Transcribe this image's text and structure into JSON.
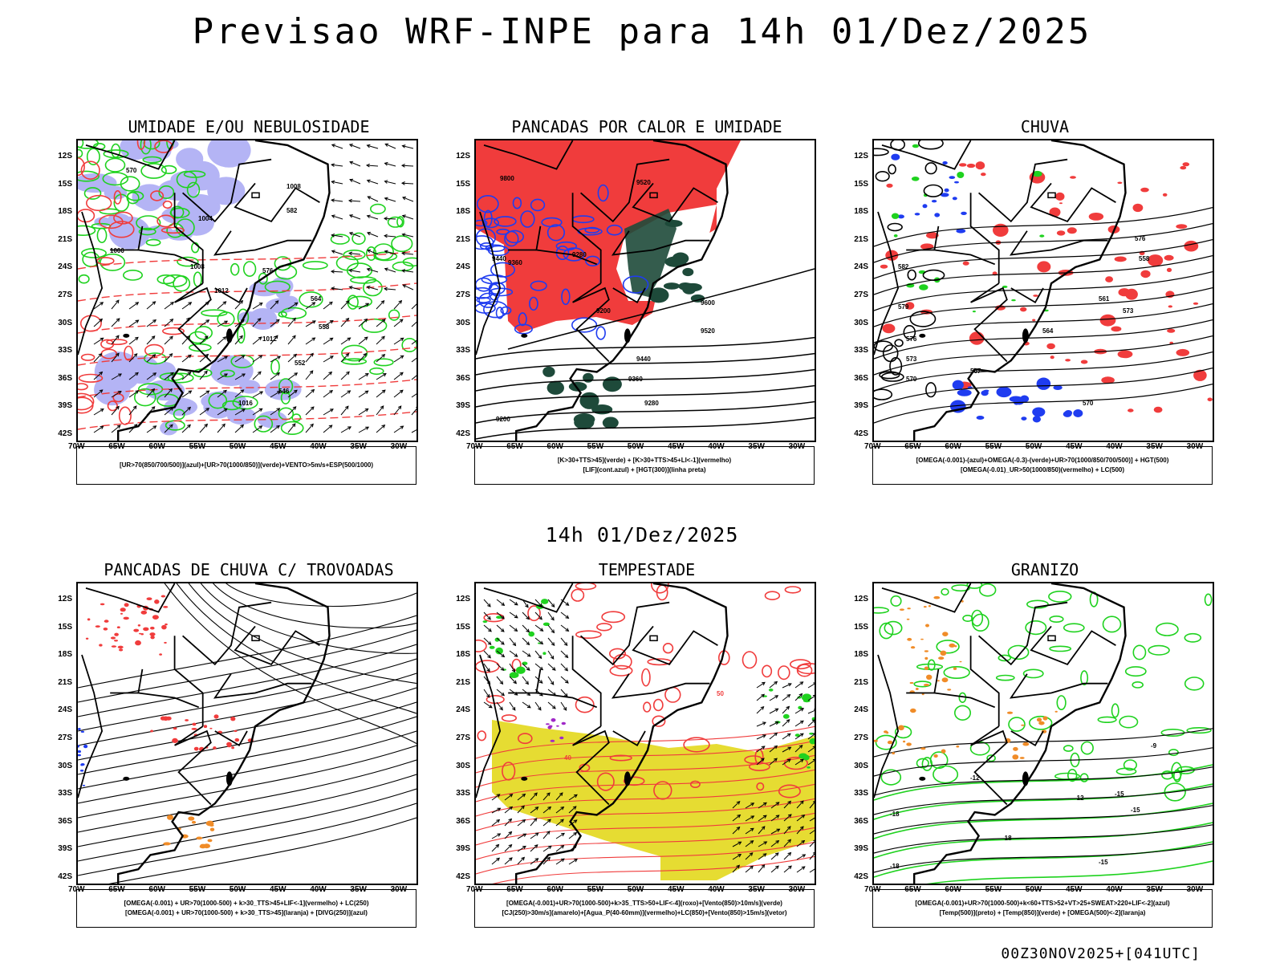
{
  "header": {
    "title": "Previsao WRF-INPE  para 14h 01/Dez/2025",
    "mid_title": "14h 01/Dez/2025",
    "footer": "00Z30NOV2025+[041UTC]"
  },
  "axes": {
    "lat_labels": [
      "12S",
      "15S",
      "18S",
      "21S",
      "24S",
      "27S",
      "30S",
      "33S",
      "36S",
      "39S",
      "42S"
    ],
    "lon_labels": [
      "70W",
      "65W",
      "60W",
      "55W",
      "50W",
      "45W",
      "40W",
      "35W",
      "30W"
    ]
  },
  "colors": {
    "red": "#f03c3c",
    "green": "#1fd21f",
    "blue": "#1f3cf0",
    "lavender": "#b4b4f5",
    "dark_green": "#1e4a3a",
    "yellow": "#e6dc32",
    "orange": "#f08c28",
    "purple": "#a028c8"
  },
  "panels": [
    {
      "id": "umidade",
      "title": "UMIDADE E/OU NEBULOSIDADE",
      "legend": [
        "[UR>70(850/700/500)](azul)+[UR>70(1000/850)](verde)+VENTO>5m/s+ESP(500/1000)"
      ],
      "contour_labels": [
        "1008",
        "1012",
        "1004",
        "1000",
        "1016",
        "570",
        "576",
        "582",
        "564",
        "558",
        "552",
        "546",
        "1008",
        "1012"
      ]
    },
    {
      "id": "pancadas-calor",
      "title": "PANCADAS POR CALOR E UMIDADE",
      "legend": [
        "[K>30+TTS>45](verde) + [K>30+TTS>45+LI<-1](vermelho)",
        "[LIF](cont.azul) + [HGT(300)](linha preta)"
      ],
      "contour_labels": [
        "9800",
        "9520",
        "9440",
        "9360",
        "9280",
        "9200",
        "9600",
        "9520",
        "9440",
        "9360",
        "9280",
        "9200"
      ]
    },
    {
      "id": "chuva",
      "title": "CHUVA",
      "legend": [
        "[OMEGA(-0.001)-(azul)+OMEGA(-0.3)-(verde)+UR>70(1000/850/700/500)] + HGT(500)",
        "[OMEGA(-0.01)_UR>50(1000/850)(vermelho) + LC(500)"
      ],
      "contour_labels": [
        "582",
        "579",
        "576",
        "573",
        "570",
        "567",
        "564",
        "561",
        "558",
        "576",
        "573",
        "570"
      ]
    },
    {
      "id": "pancadas-trovoadas",
      "title": "PANCADAS DE CHUVA C/ TROVOADAS",
      "legend": [
        "[OMEGA(-0.001) + UR>70(1000-500) + k>30_TTS>45+LIF<-1](vermelho) + LC(250)",
        "[OMEGA(-0.001) + UR>70(1000-500) + k>30_TTS>45](laranja) + [DIVG(250)](azul)"
      ],
      "contour_labels": []
    },
    {
      "id": "tempestade",
      "title": "TEMPESTADE",
      "legend": [
        "[OMEGA(-0.001)+UR>70(1000-500)+k>35_TTS>50+LIF<-4](roxo)+[Vento(850)>10m/s](verde)",
        "[CJ(250)>30m/s](amarelo)+[Agua_P(40-60mm)](vermelho)+LC(850)+[Vento(850)>15m/s](vetor)"
      ],
      "contour_labels": [
        "40",
        "50"
      ]
    },
    {
      "id": "granizo",
      "title": "GRANIZO",
      "legend": [
        "[OMEGA(-0.001)+UR>70(1000-500)+k<60+TTS>52+VT>25+SWEAT>220+LIF<-2](azul)",
        "[Temp(500)](preto) + [Temp(850)](verde) + [OMEGA(500)<-2](laranja)"
      ],
      "contour_labels": [
        "-9",
        "-12",
        "-15",
        "-18",
        "-12",
        "-15",
        "-18",
        "-18",
        "-15"
      ]
    }
  ]
}
